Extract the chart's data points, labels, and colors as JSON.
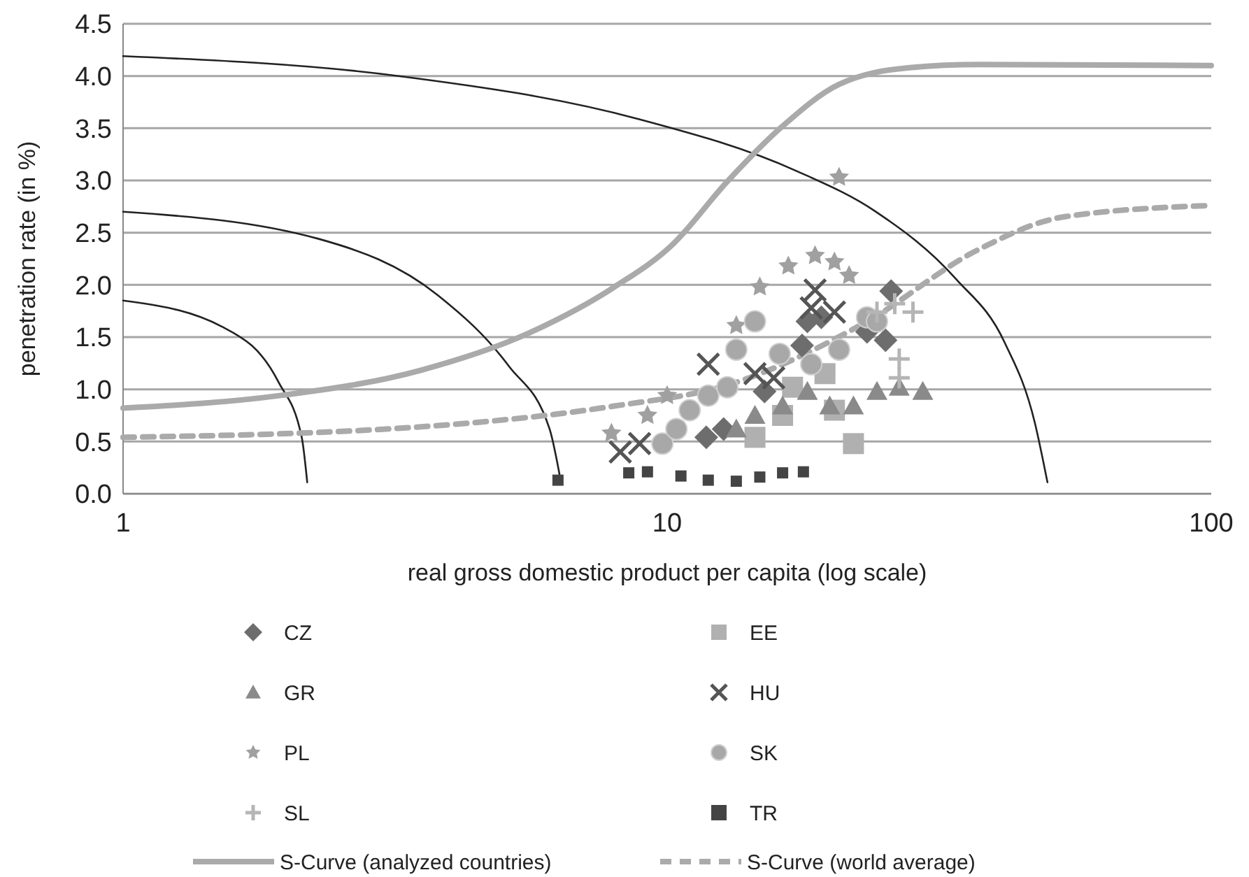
{
  "chart_data": {
    "type": "scatter",
    "xlabel": "real gross domestic product per capita (log scale)",
    "ylabel": "penetration rate (in %)",
    "log": "x",
    "xlim": [
      1,
      100
    ],
    "xticks": [
      1,
      10,
      100
    ],
    "ylim": [
      0,
      4.5
    ],
    "yticks": [
      {
        "value": 0,
        "label": "0.0"
      },
      {
        "value": 0.5,
        "label": "0.5"
      },
      {
        "value": 1,
        "label": "1.0"
      },
      {
        "value": 1.5,
        "label": "1.5"
      },
      {
        "value": 2,
        "label": "2.0"
      },
      {
        "value": 2.5,
        "label": "2.5"
      },
      {
        "value": 3,
        "label": "3.0"
      },
      {
        "value": 3.5,
        "label": "3.5"
      },
      {
        "value": 4,
        "label": "4.0"
      },
      {
        "value": 4.5,
        "label": "4.5"
      }
    ],
    "grid": "y",
    "legend": "bottom",
    "series": [
      {
        "type": "line",
        "color": "#222222",
        "marker": "none",
        "line_style": "solid",
        "x": [
          1,
          1.52,
          1.93,
          2.13,
          2.18
        ],
        "values": [
          1.85,
          1.6,
          1.07,
          0.54,
          0.11
        ]
      },
      {
        "type": "line",
        "color": "#222222",
        "marker": "none",
        "line_style": "solid",
        "x": [
          1,
          2.29,
          3.79,
          5.12,
          6.08,
          6.38
        ],
        "values": [
          2.7,
          2.44,
          1.9,
          1.22,
          0.62,
          0.11
        ]
      },
      {
        "type": "line",
        "color": "#222222",
        "marker": "none",
        "line_style": "solid",
        "x": [
          1,
          3.21,
          8.83,
          17.3,
          24.2,
          33.9,
          41.7,
          47.4,
          50
        ],
        "values": [
          4.19,
          4,
          3.59,
          3.09,
          2.7,
          2.06,
          1.45,
          0.68,
          0.11
        ]
      },
      {
        "name": "S-Curve (analyzed countries)",
        "type": "line",
        "color": "#aaaaaa",
        "marker": "none",
        "line_style": "solid",
        "x": [
          1,
          1.94,
          3.51,
          5.63,
          8,
          10.2,
          12.9,
          16.3,
          20.7,
          27.9,
          37.4,
          100
        ],
        "values": [
          0.82,
          0.94,
          1.18,
          1.55,
          1.98,
          2.38,
          2.99,
          3.52,
          3.92,
          4.08,
          4.11,
          4.1
        ]
      },
      {
        "name": "S-Curve (world average)",
        "type": "line",
        "color": "#aaaaaa",
        "marker": "none",
        "line_style": "dashed",
        "x": [
          1,
          3.5,
          8,
          12.9,
          23.3,
          37.4,
          53.4,
          100
        ],
        "values": [
          0.54,
          0.64,
          0.84,
          1.04,
          1.65,
          2.34,
          2.65,
          2.76
        ]
      },
      {
        "name": "CZ",
        "color": "#6d6d6d",
        "marker": "diamond",
        "x": [
          11.8,
          12.7,
          15.1,
          17.7,
          18.1,
          19.2,
          23.3,
          25.2,
          25.8
        ],
        "values": [
          0.54,
          0.62,
          0.98,
          1.42,
          1.65,
          1.69,
          1.55,
          1.47,
          1.94
        ]
      },
      {
        "name": "EE",
        "color": "#b0b0b0",
        "marker": "square",
        "x": [
          14.5,
          16.3,
          17,
          19.5,
          20.3,
          22
        ],
        "values": [
          0.54,
          0.75,
          1.02,
          1.15,
          0.8,
          0.48
        ]
      },
      {
        "name": "GR",
        "color": "#8a8a8a",
        "marker": "triangle",
        "x": [
          13.4,
          14.5,
          16.3,
          18.1,
          19.9,
          22,
          24.3,
          26.7,
          29.5
        ],
        "values": [
          0.62,
          0.75,
          0.84,
          0.98,
          0.84,
          0.84,
          0.98,
          1.02,
          0.98
        ]
      },
      {
        "name": "HU",
        "color": "#555555",
        "marker": "cross",
        "x": [
          8.2,
          8.9,
          11.9,
          14.5,
          15.7,
          18.4,
          18.7,
          20.3
        ],
        "values": [
          0.4,
          0.48,
          1.24,
          1.15,
          1.11,
          1.78,
          1.95,
          1.74
        ]
      },
      {
        "name": "PL",
        "color": "#a0a0a0",
        "marker": "star",
        "x": [
          7.9,
          9.2,
          10,
          13.4,
          14.8,
          16.7,
          18.7,
          20.3,
          20.7,
          21.6
        ],
        "values": [
          0.58,
          0.75,
          0.94,
          1.61,
          1.98,
          2.18,
          2.28,
          2.22,
          3.03,
          2.09
        ]
      },
      {
        "name": "SK",
        "color": "#a8a8a8",
        "marker": "circle",
        "x": [
          9.8,
          10.4,
          11,
          11.9,
          12.9,
          13.4,
          14.5,
          16.1,
          18.4,
          20.7,
          23.3,
          24.3
        ],
        "values": [
          0.48,
          0.62,
          0.8,
          0.94,
          1.02,
          1.38,
          1.65,
          1.34,
          1.24,
          1.38,
          1.69,
          1.65
        ]
      },
      {
        "name": "SL",
        "color": "#b5b5b5",
        "marker": "plus",
        "x": [
          24.3,
          26.2,
          26.7,
          26.7,
          28.3
        ],
        "values": [
          1.74,
          1.82,
          1.29,
          1.11,
          1.74
        ]
      },
      {
        "name": "TR",
        "color": "#444444",
        "marker": "square",
        "x": [
          6.3,
          8.5,
          9.2,
          10.6,
          11.9,
          13.4,
          14.8,
          16.3,
          17.8
        ],
        "values": [
          0.13,
          0.2,
          0.21,
          0.17,
          0.13,
          0.12,
          0.16,
          0.2,
          0.21
        ]
      }
    ]
  }
}
